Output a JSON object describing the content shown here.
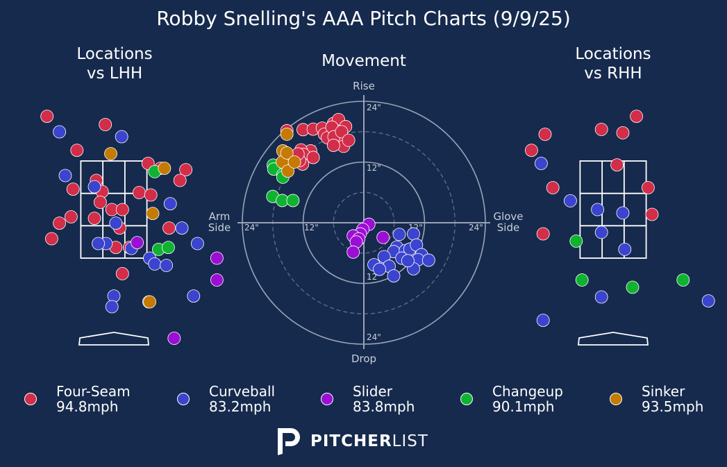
{
  "title": "Robby Snelling's AAA Pitch Charts (9/9/25)",
  "colors": {
    "background": "#162a4d",
    "Four-Seam": "#d22d49",
    "Curveball": "#3b44ce",
    "Slider": "#9c0ed4",
    "Changeup": "#0fb331",
    "Sinker": "#c57a02"
  },
  "legend": [
    {
      "name": "Four-Seam",
      "speed": "94.8mph"
    },
    {
      "name": "Curveball",
      "speed": "83.2mph"
    },
    {
      "name": "Slider",
      "speed": "83.8mph"
    },
    {
      "name": "Changeup",
      "speed": "90.1mph"
    },
    {
      "name": "Sinker",
      "speed": "93.5mph"
    }
  ],
  "branding": {
    "bold": "PITCHER",
    "light": "LIST"
  },
  "chart_data": [
    {
      "type": "scatter",
      "title": "Locations\nvs LHH",
      "note": "catcher's view; strike zone drawn as 3x3 grid; home plate below",
      "points": [
        {
          "pitch": "Four-Seam",
          "x": -1.72,
          "y": 4.42
        },
        {
          "pitch": "Four-Seam",
          "x": -0.22,
          "y": 4.25
        },
        {
          "pitch": "Four-Seam",
          "x": -2.2,
          "y": 3.6
        },
        {
          "pitch": "Four-Seam",
          "x": -0.95,
          "y": 3.72
        },
        {
          "pitch": "Four-Seam",
          "x": 0.88,
          "y": 3.45
        },
        {
          "pitch": "Four-Seam",
          "x": 1.2,
          "y": 3.35
        },
        {
          "pitch": "Four-Seam",
          "x": 1.85,
          "y": 3.32
        },
        {
          "pitch": "Four-Seam",
          "x": -0.45,
          "y": 3.1
        },
        {
          "pitch": "Four-Seam",
          "x": 1.7,
          "y": 3.1
        },
        {
          "pitch": "Four-Seam",
          "x": -1.05,
          "y": 2.92
        },
        {
          "pitch": "Four-Seam",
          "x": -0.3,
          "y": 2.87
        },
        {
          "pitch": "Four-Seam",
          "x": 0.65,
          "y": 2.85
        },
        {
          "pitch": "Four-Seam",
          "x": 0.95,
          "y": 2.8
        },
        {
          "pitch": "Four-Seam",
          "x": -0.35,
          "y": 2.65
        },
        {
          "pitch": "Four-Seam",
          "x": -0.05,
          "y": 2.5
        },
        {
          "pitch": "Four-Seam",
          "x": 0.22,
          "y": 2.5
        },
        {
          "pitch": "Four-Seam",
          "x": -1.1,
          "y": 2.35
        },
        {
          "pitch": "Four-Seam",
          "x": -1.4,
          "y": 2.22
        },
        {
          "pitch": "Four-Seam",
          "x": -0.5,
          "y": 2.32
        },
        {
          "pitch": "Four-Seam",
          "x": 1.42,
          "y": 2.12
        },
        {
          "pitch": "Four-Seam",
          "x": 0.15,
          "y": 2.12
        },
        {
          "pitch": "Four-Seam",
          "x": -1.6,
          "y": 1.9
        },
        {
          "pitch": "Four-Seam",
          "x": 0.05,
          "y": 1.72
        },
        {
          "pitch": "Four-Seam",
          "x": 0.4,
          "y": 1.72
        },
        {
          "pitch": "Four-Seam",
          "x": 0.22,
          "y": 1.18
        },
        {
          "pitch": "Curveball",
          "x": -1.4,
          "y": 4.1
        },
        {
          "pitch": "Curveball",
          "x": 0.2,
          "y": 4.0
        },
        {
          "pitch": "Curveball",
          "x": -1.25,
          "y": 3.2
        },
        {
          "pitch": "Curveball",
          "x": -0.5,
          "y": 2.97
        },
        {
          "pitch": "Curveball",
          "x": 1.45,
          "y": 2.62
        },
        {
          "pitch": "Curveball",
          "x": 0.05,
          "y": 2.22
        },
        {
          "pitch": "Curveball",
          "x": 1.75,
          "y": 2.12
        },
        {
          "pitch": "Curveball",
          "x": -0.2,
          "y": 1.8
        },
        {
          "pitch": "Curveball",
          "x": 0.45,
          "y": 1.7
        },
        {
          "pitch": "Curveball",
          "x": 2.15,
          "y": 1.8
        },
        {
          "pitch": "Curveball",
          "x": 0.92,
          "y": 1.5
        },
        {
          "pitch": "Curveball",
          "x": 1.05,
          "y": 1.38
        },
        {
          "pitch": "Curveball",
          "x": 1.35,
          "y": 1.35
        },
        {
          "pitch": "Curveball",
          "x": 0.0,
          "y": 0.72
        },
        {
          "pitch": "Curveball",
          "x": 0.9,
          "y": 0.6
        },
        {
          "pitch": "Curveball",
          "x": 2.05,
          "y": 0.72
        },
        {
          "pitch": "Curveball",
          "x": -0.05,
          "y": 0.5
        },
        {
          "pitch": "Curveball",
          "x": -0.4,
          "y": 1.8
        },
        {
          "pitch": "Slider",
          "x": 0.6,
          "y": 1.82
        },
        {
          "pitch": "Slider",
          "x": 2.65,
          "y": 1.5
        },
        {
          "pitch": "Slider",
          "x": 2.65,
          "y": 1.05
        },
        {
          "pitch": "Slider",
          "x": 1.55,
          "y": -0.15
        },
        {
          "pitch": "Changeup",
          "x": 1.05,
          "y": 3.28
        },
        {
          "pitch": "Changeup",
          "x": 1.15,
          "y": 1.68
        },
        {
          "pitch": "Changeup",
          "x": 1.4,
          "y": 1.72
        },
        {
          "pitch": "Sinker",
          "x": -0.08,
          "y": 3.65
        },
        {
          "pitch": "Sinker",
          "x": 1.3,
          "y": 3.35
        },
        {
          "pitch": "Sinker",
          "x": -2.85,
          "y": 3.35
        },
        {
          "pitch": "Sinker",
          "x": 1.0,
          "y": 2.42
        },
        {
          "pitch": "Sinker",
          "x": 0.92,
          "y": 0.6
        }
      ]
    },
    {
      "type": "scatter",
      "title": "Movement",
      "xlabel": "Arm\nSide",
      "xlabel2": "Glove\nSide",
      "ylabel_top": "Rise",
      "ylabel_bottom": "Drop",
      "ring_labels": [
        "24\"",
        "12\"",
        "12\"",
        "24\"",
        "24\"",
        "12\"",
        "12\"",
        "24\""
      ],
      "units": "inches (negative x = arm side, positive y = rise)",
      "range": [
        -24,
        24
      ],
      "points": [
        {
          "pitch": "Four-Seam",
          "x": -15.2,
          "y": 18.2
        },
        {
          "pitch": "Four-Seam",
          "x": -12.0,
          "y": 18.4
        },
        {
          "pitch": "Four-Seam",
          "x": -10.0,
          "y": 18.5
        },
        {
          "pitch": "Four-Seam",
          "x": -8.2,
          "y": 18.7
        },
        {
          "pitch": "Four-Seam",
          "x": -7.8,
          "y": 17.5
        },
        {
          "pitch": "Four-Seam",
          "x": -7.2,
          "y": 16.8
        },
        {
          "pitch": "Four-Seam",
          "x": -6.0,
          "y": 19.6
        },
        {
          "pitch": "Four-Seam",
          "x": -5.0,
          "y": 20.4
        },
        {
          "pitch": "Four-Seam",
          "x": -5.5,
          "y": 18.2
        },
        {
          "pitch": "Four-Seam",
          "x": -4.8,
          "y": 17.6
        },
        {
          "pitch": "Four-Seam",
          "x": -4.2,
          "y": 16.8
        },
        {
          "pitch": "Four-Seam",
          "x": -3.6,
          "y": 19.0
        },
        {
          "pitch": "Four-Seam",
          "x": -6.3,
          "y": 18.9
        },
        {
          "pitch": "Four-Seam",
          "x": -5.9,
          "y": 17.0
        },
        {
          "pitch": "Four-Seam",
          "x": -4.0,
          "y": 15.1
        },
        {
          "pitch": "Four-Seam",
          "x": -6.0,
          "y": 15.3
        },
        {
          "pitch": "Four-Seam",
          "x": -4.4,
          "y": 18.0
        },
        {
          "pitch": "Four-Seam",
          "x": -3.0,
          "y": 16.3
        },
        {
          "pitch": "Four-Seam",
          "x": -10.5,
          "y": 14.2
        },
        {
          "pitch": "Four-Seam",
          "x": -12.4,
          "y": 14.4
        },
        {
          "pitch": "Four-Seam",
          "x": -11.9,
          "y": 13.5
        },
        {
          "pitch": "Four-Seam",
          "x": -10.0,
          "y": 12.9
        },
        {
          "pitch": "Four-Seam",
          "x": -12.1,
          "y": 11.6
        },
        {
          "pitch": "Four-Seam",
          "x": -12.7,
          "y": 12.3
        },
        {
          "pitch": "Four-Seam",
          "x": -13.0,
          "y": 13.6
        },
        {
          "pitch": "Curveball",
          "x": 7.0,
          "y": -2.3
        },
        {
          "pitch": "Curveball",
          "x": 9.8,
          "y": -2.2
        },
        {
          "pitch": "Curveball",
          "x": 6.5,
          "y": -4.8
        },
        {
          "pitch": "Curveball",
          "x": 5.9,
          "y": -5.7
        },
        {
          "pitch": "Curveball",
          "x": 8.2,
          "y": -5.5
        },
        {
          "pitch": "Curveball",
          "x": 9.1,
          "y": -5.2
        },
        {
          "pitch": "Curveball",
          "x": 10.4,
          "y": -4.4
        },
        {
          "pitch": "Curveball",
          "x": 11.4,
          "y": -6.3
        },
        {
          "pitch": "Curveball",
          "x": 10.7,
          "y": -7.3
        },
        {
          "pitch": "Curveball",
          "x": 12.8,
          "y": -7.4
        },
        {
          "pitch": "Curveball",
          "x": 4.0,
          "y": -6.7
        },
        {
          "pitch": "Curveball",
          "x": 7.5,
          "y": -7.0
        },
        {
          "pitch": "Curveball",
          "x": 5.0,
          "y": -8.6
        },
        {
          "pitch": "Curveball",
          "x": 2.0,
          "y": -8.3
        },
        {
          "pitch": "Curveball",
          "x": 3.1,
          "y": -9.2
        },
        {
          "pitch": "Curveball",
          "x": 9.8,
          "y": -9.1
        },
        {
          "pitch": "Curveball",
          "x": 5.9,
          "y": -10.5
        },
        {
          "pitch": "Curveball",
          "x": 8.7,
          "y": -7.5
        },
        {
          "pitch": "Slider",
          "x": 1.0,
          "y": -0.3
        },
        {
          "pitch": "Slider",
          "x": -0.2,
          "y": -1.3
        },
        {
          "pitch": "Slider",
          "x": -0.7,
          "y": -2.2
        },
        {
          "pitch": "Slider",
          "x": -2.1,
          "y": -2.6
        },
        {
          "pitch": "Slider",
          "x": 3.8,
          "y": -2.9
        },
        {
          "pitch": "Slider",
          "x": -1.0,
          "y": -3.2
        },
        {
          "pitch": "Slider",
          "x": -1.5,
          "y": -3.8
        },
        {
          "pitch": "Slider",
          "x": -2.1,
          "y": -5.8
        },
        {
          "pitch": "Changeup",
          "x": -17.9,
          "y": 11.4
        },
        {
          "pitch": "Changeup",
          "x": -17.8,
          "y": 10.6
        },
        {
          "pitch": "Changeup",
          "x": -16.0,
          "y": 9.5
        },
        {
          "pitch": "Changeup",
          "x": -16.0,
          "y": 9.0
        },
        {
          "pitch": "Changeup",
          "x": -18.0,
          "y": 5.2
        },
        {
          "pitch": "Changeup",
          "x": -16.1,
          "y": 4.4
        },
        {
          "pitch": "Changeup",
          "x": -14.0,
          "y": 4.4
        },
        {
          "pitch": "Sinker",
          "x": -15.2,
          "y": 17.5
        },
        {
          "pitch": "Sinker",
          "x": -16.0,
          "y": 14.2
        },
        {
          "pitch": "Sinker",
          "x": -16.1,
          "y": 12.0
        },
        {
          "pitch": "Sinker",
          "x": -15.2,
          "y": 13.8
        },
        {
          "pitch": "Sinker",
          "x": -15.0,
          "y": 10.2
        },
        {
          "pitch": "Sinker",
          "x": -13.7,
          "y": 12.0
        }
      ]
    },
    {
      "type": "scatter",
      "title": "Locations\nvs RHH",
      "note": "catcher's view; strike zone drawn as 3x3 grid; home plate below",
      "points": [
        {
          "pitch": "Four-Seam",
          "x": 0.6,
          "y": 4.42
        },
        {
          "pitch": "Four-Seam",
          "x": -1.75,
          "y": 4.05
        },
        {
          "pitch": "Four-Seam",
          "x": -0.3,
          "y": 4.15
        },
        {
          "pitch": "Four-Seam",
          "x": 0.25,
          "y": 4.08
        },
        {
          "pitch": "Four-Seam",
          "x": -2.1,
          "y": 3.72
        },
        {
          "pitch": "Four-Seam",
          "x": 0.1,
          "y": 3.42
        },
        {
          "pitch": "Four-Seam",
          "x": -1.55,
          "y": 2.95
        },
        {
          "pitch": "Four-Seam",
          "x": 0.9,
          "y": 2.95
        },
        {
          "pitch": "Four-Seam",
          "x": 1.0,
          "y": 2.4
        },
        {
          "pitch": "Four-Seam",
          "x": -1.8,
          "y": 2.0
        },
        {
          "pitch": "Curveball",
          "x": -1.85,
          "y": 3.45
        },
        {
          "pitch": "Curveball",
          "x": -1.1,
          "y": 2.68
        },
        {
          "pitch": "Curveball",
          "x": -0.4,
          "y": 2.5
        },
        {
          "pitch": "Curveball",
          "x": 0.25,
          "y": 2.43
        },
        {
          "pitch": "Curveball",
          "x": -0.3,
          "y": 2.03
        },
        {
          "pitch": "Curveball",
          "x": 0.3,
          "y": 1.68
        },
        {
          "pitch": "Curveball",
          "x": -0.3,
          "y": 0.7
        },
        {
          "pitch": "Curveball",
          "x": 2.45,
          "y": 0.62
        },
        {
          "pitch": "Curveball",
          "x": -1.8,
          "y": 0.22
        },
        {
          "pitch": "Changeup",
          "x": -0.95,
          "y": 1.85
        },
        {
          "pitch": "Changeup",
          "x": -0.8,
          "y": 1.05
        },
        {
          "pitch": "Changeup",
          "x": 0.5,
          "y": 0.9
        },
        {
          "pitch": "Changeup",
          "x": 1.8,
          "y": 1.05
        }
      ]
    }
  ]
}
